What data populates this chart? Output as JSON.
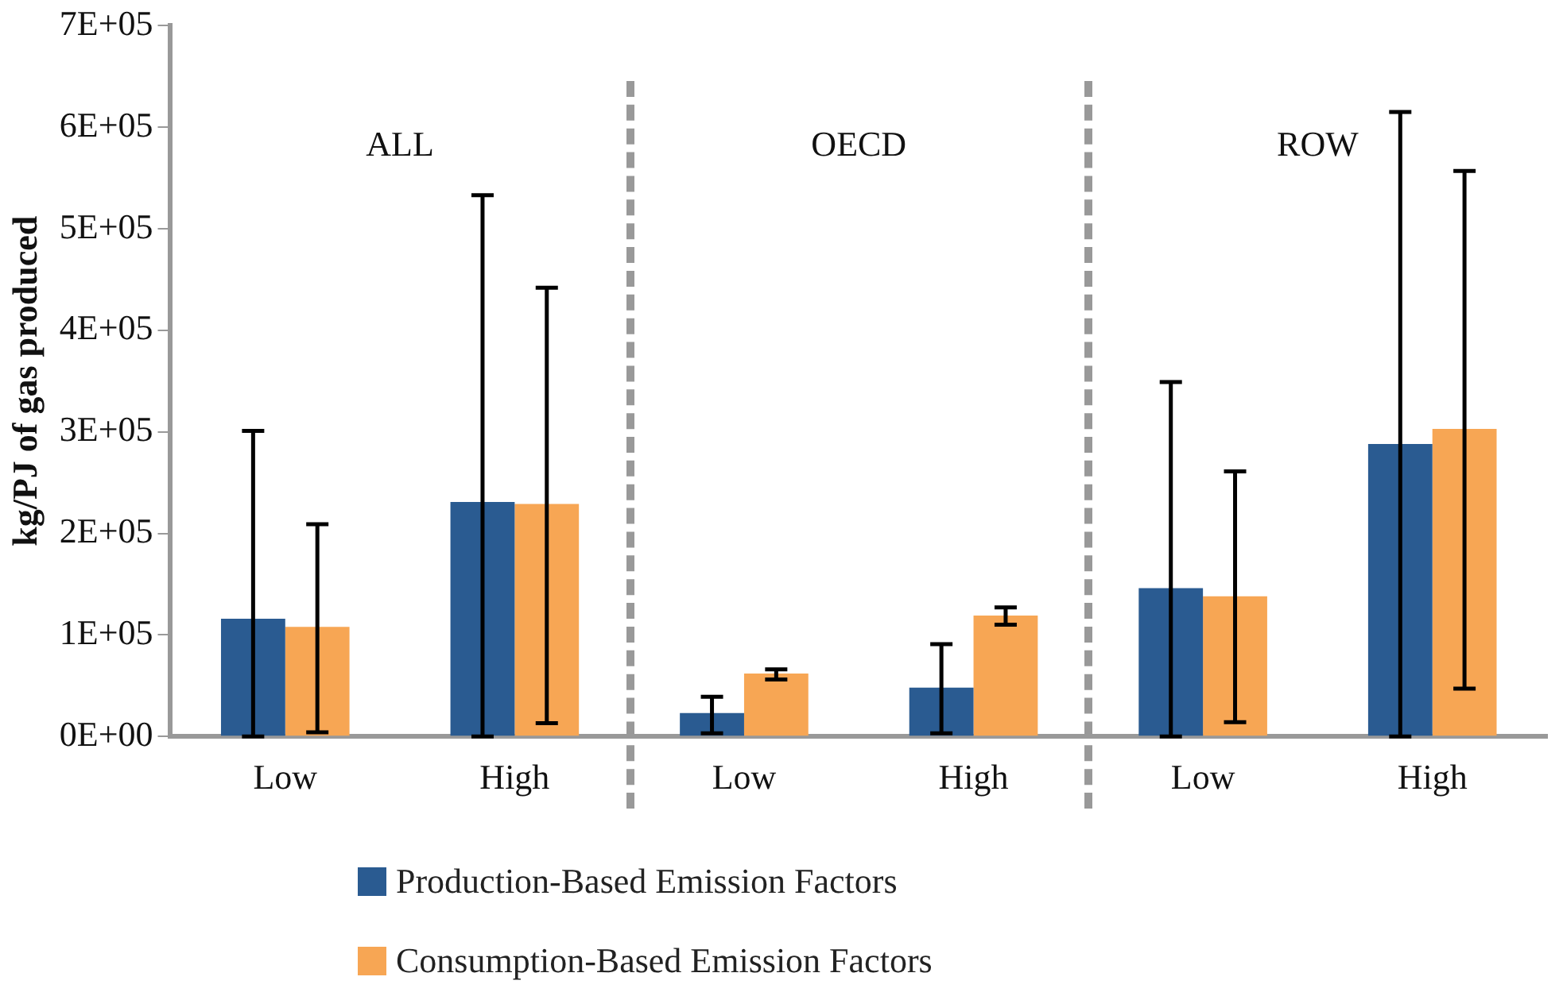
{
  "chart_data": {
    "type": "bar",
    "ylabel": "kg/PJ of gas produced",
    "categories": [
      "Low",
      "High",
      "Low",
      "High",
      "Low",
      "High"
    ],
    "series": [
      {
        "name": "Production-Based Emission Factors",
        "color": "#2a5b91",
        "values": [
          116000,
          231000,
          23000,
          48000,
          146000,
          288000
        ],
        "errors": [
          [
            0,
            301000
          ],
          [
            0,
            533000
          ],
          [
            3000,
            39000
          ],
          [
            3000,
            91000
          ],
          [
            0,
            349000
          ],
          [
            0,
            615000
          ]
        ]
      },
      {
        "name": "Consumption-Based Emission Factors",
        "color": "#f7a654",
        "values": [
          108000,
          229000,
          62000,
          119000,
          138000,
          303000
        ],
        "errors": [
          [
            4000,
            209000
          ],
          [
            13000,
            442000
          ],
          [
            56000,
            66000
          ],
          [
            110000,
            127000
          ],
          [
            14000,
            261000
          ],
          [
            47000,
            557000
          ]
        ]
      }
    ],
    "ylim": [
      0,
      700000
    ],
    "yticks": [
      {
        "value": 0,
        "label": "0E+00"
      },
      {
        "value": 100000,
        "label": "1E+05"
      },
      {
        "value": 200000,
        "label": "2E+05"
      },
      {
        "value": 300000,
        "label": "3E+05"
      },
      {
        "value": 400000,
        "label": "4E+05"
      },
      {
        "value": 500000,
        "label": "5E+05"
      },
      {
        "value": 600000,
        "label": "6E+05"
      },
      {
        "value": 700000,
        "label": "7E+05"
      }
    ],
    "annotations": [
      "ALL",
      "OECD",
      "ROW"
    ],
    "grid": false,
    "legend": "bottom"
  }
}
